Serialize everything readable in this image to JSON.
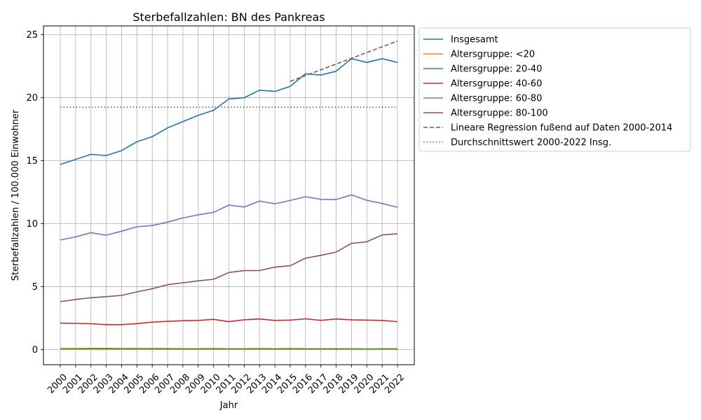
{
  "chart_data": {
    "type": "line",
    "title": "Sterbefallzahlen: BN des Pankreas",
    "xlabel": "Jahr",
    "ylabel": "Sterbefallzahlen / 100.000 Einwohner",
    "ylim": [
      -1.2,
      25.7
    ],
    "yticks": [
      0,
      5,
      10,
      15,
      20,
      25
    ],
    "grid": true,
    "legend_position": "outside-right",
    "x": [
      2000,
      2001,
      2002,
      2003,
      2004,
      2005,
      2006,
      2007,
      2008,
      2009,
      2010,
      2011,
      2012,
      2013,
      2014,
      2015,
      2016,
      2017,
      2018,
      2019,
      2020,
      2021,
      2022
    ],
    "series": [
      {
        "name": "Insgesamt",
        "color": "#1f77b4",
        "style": "solid",
        "values": [
          14.7,
          15.1,
          15.5,
          15.4,
          15.8,
          16.5,
          16.9,
          17.6,
          18.1,
          18.6,
          19.0,
          19.9,
          20.0,
          20.6,
          20.5,
          20.9,
          21.9,
          21.8,
          22.1,
          23.1,
          22.8,
          23.1,
          22.8
        ]
      },
      {
        "name": "Altersgruppe: <20",
        "color": "#ff7f0e",
        "style": "solid",
        "values": [
          0.02,
          0.02,
          0.02,
          0.02,
          0.02,
          0.02,
          0.02,
          0.02,
          0.02,
          0.02,
          0.02,
          0.02,
          0.02,
          0.02,
          0.02,
          0.02,
          0.02,
          0.02,
          0.02,
          0.02,
          0.02,
          0.02,
          0.02
        ]
      },
      {
        "name": "Altersgruppe: 20-40",
        "color": "#2ca02c",
        "style": "solid",
        "values": [
          0.08,
          0.08,
          0.09,
          0.09,
          0.08,
          0.07,
          0.08,
          0.07,
          0.06,
          0.06,
          0.07,
          0.06,
          0.06,
          0.07,
          0.06,
          0.07,
          0.06,
          0.06,
          0.06,
          0.06,
          0.05,
          0.06,
          0.06
        ]
      },
      {
        "name": "Altersgruppe: 40-60",
        "color": "#d62728",
        "style": "solid",
        "values": [
          2.1,
          2.08,
          2.05,
          1.98,
          1.98,
          2.06,
          2.18,
          2.24,
          2.29,
          2.31,
          2.4,
          2.21,
          2.37,
          2.43,
          2.31,
          2.34,
          2.44,
          2.32,
          2.43,
          2.36,
          2.34,
          2.31,
          2.22
        ]
      },
      {
        "name": "Altersgruppe: 60-80",
        "color": "#9467bd",
        "style": "solid",
        "values": [
          8.7,
          8.95,
          9.28,
          9.08,
          9.4,
          9.75,
          9.85,
          10.12,
          10.45,
          10.7,
          10.9,
          11.47,
          11.32,
          11.79,
          11.58,
          11.84,
          12.14,
          11.93,
          11.91,
          12.29,
          11.85,
          11.6,
          11.3
        ]
      },
      {
        "name": "Altersgruppe: 80-100",
        "color": "#8c564b",
        "style": "solid",
        "values": [
          3.8,
          3.98,
          4.12,
          4.2,
          4.3,
          4.58,
          4.83,
          5.15,
          5.3,
          5.46,
          5.58,
          6.12,
          6.27,
          6.28,
          6.55,
          6.66,
          7.26,
          7.48,
          7.74,
          8.43,
          8.56,
          9.1,
          9.2
        ]
      },
      {
        "name": "Lineare Regression fußend auf Daten 2000-2014",
        "color": "#8c564b",
        "style": "dashed",
        "x": [
          2015,
          2022
        ],
        "values": [
          21.3,
          24.5
        ]
      },
      {
        "name": "Durchschnittswert 2000-2022 Insg.",
        "color": "#8c564b",
        "style": "dotted",
        "x": [
          2000,
          2022
        ],
        "values": [
          19.25,
          19.25
        ]
      }
    ]
  }
}
